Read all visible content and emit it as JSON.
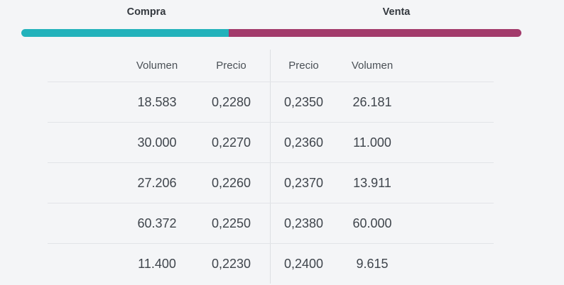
{
  "header": {
    "compra_label": "Compra",
    "venta_label": "Venta"
  },
  "depth_bar": {
    "compra_color": "#22b2bb",
    "venta_color": "#a23a6b",
    "compra_percent": 41.5,
    "venta_percent": 58.5
  },
  "table": {
    "columns": {
      "compra_volumen": "Volumen",
      "compra_precio": "Precio",
      "venta_precio": "Precio",
      "venta_volumen": "Volumen"
    },
    "rows": [
      {
        "compra_volumen": "18.583",
        "compra_precio": "0,2280",
        "venta_precio": "0,2350",
        "venta_volumen": "26.181"
      },
      {
        "compra_volumen": "30.000",
        "compra_precio": "0,2270",
        "venta_precio": "0,2360",
        "venta_volumen": "11.000"
      },
      {
        "compra_volumen": "27.206",
        "compra_precio": "0,2260",
        "venta_precio": "0,2370",
        "venta_volumen": "13.911"
      },
      {
        "compra_volumen": "60.372",
        "compra_precio": "0,2250",
        "venta_precio": "0,2380",
        "venta_volumen": "60.000"
      },
      {
        "compra_volumen": "11.400",
        "compra_precio": "0,2230",
        "venta_precio": "0,2400",
        "venta_volumen": "9.615"
      }
    ]
  }
}
